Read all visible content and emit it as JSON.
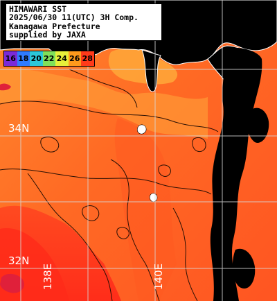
{
  "header": {
    "lines": [
      "HIMAWARI SST",
      "2025/06/30 11(UTC) 3H Comp.",
      "Kanagawa Prefecture",
      "supplied by JAXA"
    ]
  },
  "legend": {
    "labels": [
      "16",
      "18",
      "20",
      "22",
      "24",
      "26",
      "28"
    ],
    "colors": [
      "#7a2ad8",
      "#2f7bff",
      "#2cc7d9",
      "#7fe05a",
      "#e7ef3a",
      "#ff9a1c",
      "#ff3a1a"
    ]
  },
  "grid": {
    "lat_labels": [
      "34N",
      "32N"
    ],
    "lon_labels": [
      "138E",
      "140E"
    ]
  },
  "colors": {
    "land": "#000000",
    "no_data": "#000000",
    "sea_warm": "#ff6f24",
    "sea_hot": "#ff3a1f",
    "sea_mid": "#ff9133",
    "sea_cool": "#ffb23a",
    "coast": "#ffffff",
    "contour": "#2a1004",
    "grid": "#d8d8d8"
  }
}
